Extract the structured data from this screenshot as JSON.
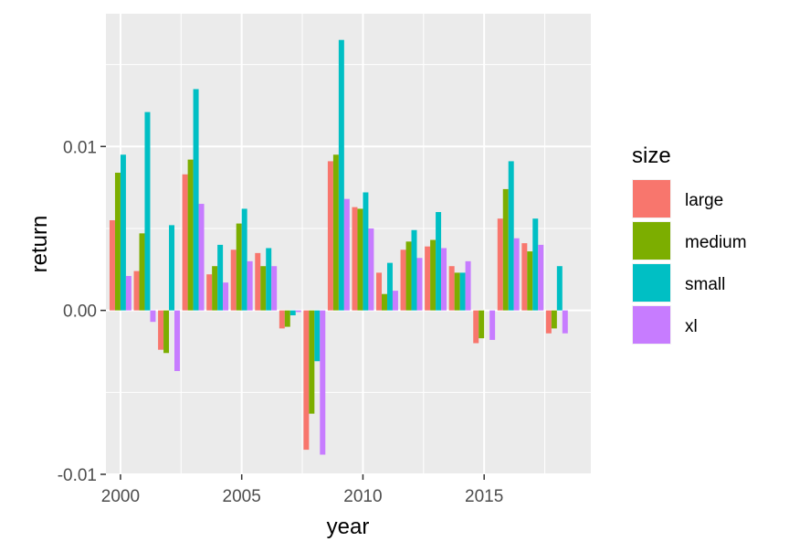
{
  "chart_data": {
    "type": "bar",
    "xlabel": "year",
    "ylabel": "return",
    "x_ticks": [
      "2000",
      "2005",
      "2010",
      "2015"
    ],
    "y_ticks": [
      "-0.01",
      "0.00",
      "0.01"
    ],
    "xlim": [
      1999.4,
      2019.4
    ],
    "ylim": [
      -0.01,
      0.0181
    ],
    "grid": true,
    "legend": {
      "title": "size",
      "position": "right"
    },
    "years": [
      2000,
      2001,
      2002,
      2003,
      2004,
      2005,
      2006,
      2007,
      2008,
      2009,
      2010,
      2011,
      2012,
      2013,
      2014,
      2015,
      2016,
      2017,
      2018
    ],
    "series": [
      {
        "name": "large",
        "color": "#F8766D",
        "values": [
          0.0055,
          0.0024,
          -0.0024,
          0.0083,
          0.0022,
          0.0037,
          0.0035,
          -0.0011,
          -0.0085,
          0.0091,
          0.0063,
          0.0023,
          0.0037,
          0.0039,
          0.0027,
          -0.002,
          0.0056,
          0.0041,
          -0.0014
        ]
      },
      {
        "name": "medium",
        "color": "#7CAE00",
        "values": [
          0.0084,
          0.0047,
          -0.0026,
          0.0092,
          0.0027,
          0.0053,
          0.0027,
          -0.001,
          -0.0063,
          0.0095,
          0.0062,
          0.001,
          0.0042,
          0.0043,
          0.0023,
          -0.0017,
          0.0074,
          0.0036,
          -0.0011
        ]
      },
      {
        "name": "small",
        "color": "#00BFC4",
        "values": [
          0.0095,
          0.0121,
          0.0052,
          0.0135,
          0.004,
          0.0062,
          0.0038,
          -0.0003,
          -0.0031,
          0.0165,
          0.0072,
          0.0029,
          0.0049,
          0.006,
          0.0023,
          0.0,
          0.0091,
          0.0056,
          0.0027
        ]
      },
      {
        "name": "xl",
        "color": "#C77CFF",
        "values": [
          0.0021,
          -0.0007,
          -0.0037,
          0.0065,
          0.0017,
          0.003,
          0.0027,
          -0.0001,
          -0.0088,
          0.0068,
          0.005,
          0.0012,
          0.0032,
          0.0038,
          0.003,
          -0.0018,
          0.0044,
          0.004,
          -0.0014
        ]
      }
    ]
  }
}
